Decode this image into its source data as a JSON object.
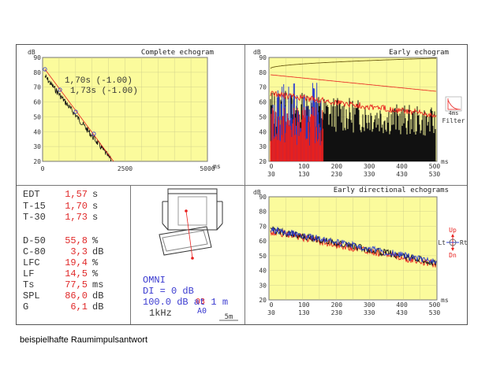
{
  "caption": "beispielhafte Raumimpulsantwort",
  "panels": {
    "complete": {
      "title": "Complete echogram",
      "y_unit": "dB",
      "x_unit": "ms",
      "y_ticks": [
        "90",
        "80",
        "70",
        "60",
        "50",
        "40",
        "30",
        "20"
      ],
      "x_ticks": [
        "0",
        "2500",
        "5000"
      ],
      "annotation_1": "1,70s (-1.00)",
      "annotation_2": "1,73s (-1.00)"
    },
    "early": {
      "title": "Early echogram",
      "y_unit": "dB",
      "x_unit": "ms",
      "y_ticks": [
        "90",
        "80",
        "70",
        "60",
        "50",
        "40",
        "30",
        "20"
      ],
      "x_ticks_top": [
        "0",
        "100",
        "200",
        "300",
        "400",
        "500"
      ],
      "x_ticks_bottom": [
        "30",
        "130",
        "230",
        "330",
        "430",
        "530"
      ],
      "filter_small": "4ms",
      "filter_label": "Filter"
    },
    "directional": {
      "title": "Early directional echograms",
      "y_unit": "dB",
      "x_unit": "ms",
      "y_ticks": [
        "90",
        "80",
        "70",
        "60",
        "50",
        "40",
        "30",
        "20"
      ],
      "x_ticks_top": [
        "0",
        "100",
        "200",
        "300",
        "400",
        "500"
      ],
      "x_ticks_bottom": [
        "30",
        "130",
        "230",
        "330",
        "430",
        "530"
      ],
      "dir_up": "Up",
      "dir_dn": "Dn",
      "dir_lt": "Lt",
      "dir_rt": "Rt"
    }
  },
  "stats": [
    {
      "label": "EDT",
      "value": "1,57",
      "unit": "s"
    },
    {
      "label": "T-15",
      "value": "1,70",
      "unit": "s"
    },
    {
      "label": "T-30",
      "value": "1,73",
      "unit": "s"
    },
    {
      "label": "D-50",
      "value": "55,8",
      "unit": "%"
    },
    {
      "label": "C-80",
      "value": "3,3",
      "unit": "dB"
    },
    {
      "label": "LFC",
      "value": "19,4",
      "unit": "%"
    },
    {
      "label": "LF",
      "value": "14,5",
      "unit": "%"
    },
    {
      "label": "Ts",
      "value": "77,5",
      "unit": "ms"
    },
    {
      "label": "SPL",
      "value": "86,0",
      "unit": "dB"
    },
    {
      "label": "G",
      "value": "6,1",
      "unit": "dB"
    }
  ],
  "plan": {
    "receiver_label": "03",
    "source_label": "A0",
    "scale_label": "5m"
  },
  "source_info": {
    "type": "OMNI",
    "di": "DI = 0 dB",
    "level": "100.0 dB at 1 m",
    "freq": "1kHz"
  },
  "colors": {
    "plot_bg": "#fbfb9c",
    "red": "#e8201e",
    "blue": "#2e3fcf",
    "black": "#111111",
    "darkline": "#6b5a10",
    "value_red": "#e02a2a",
    "info_blue": "#3a3ad0"
  }
}
